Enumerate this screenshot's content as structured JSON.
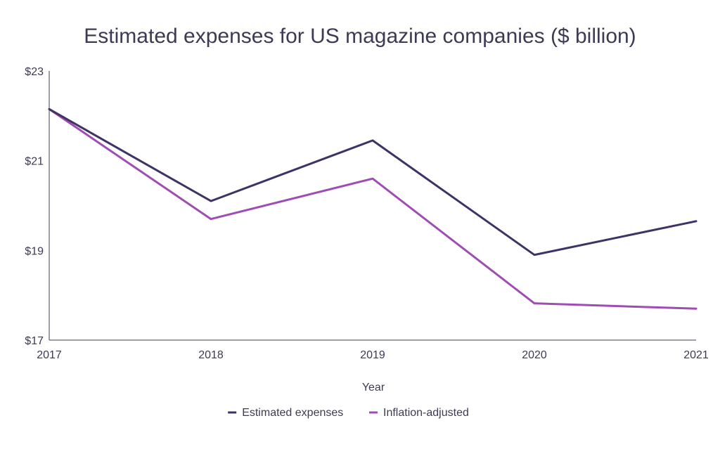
{
  "chart_data": {
    "type": "line",
    "title": "Estimated expenses for US magazine companies ($ billion)",
    "xlabel": "Year",
    "ylabel": "",
    "categories": [
      "2017",
      "2018",
      "2019",
      "2020",
      "2021"
    ],
    "ylim": [
      17,
      23
    ],
    "yticks": [
      17,
      19,
      21,
      23
    ],
    "ytick_labels": [
      "$17",
      "$19",
      "$21",
      "$23"
    ],
    "grid": false,
    "legend_position": "bottom-center",
    "series": [
      {
        "name": "Estimated expenses",
        "color": "#3f3266",
        "values": [
          22.15,
          20.1,
          21.45,
          18.9,
          19.65
        ]
      },
      {
        "name": "Inflation-adjusted",
        "color": "#a04db3",
        "values": [
          22.15,
          19.7,
          20.6,
          17.82,
          17.7
        ]
      }
    ]
  }
}
